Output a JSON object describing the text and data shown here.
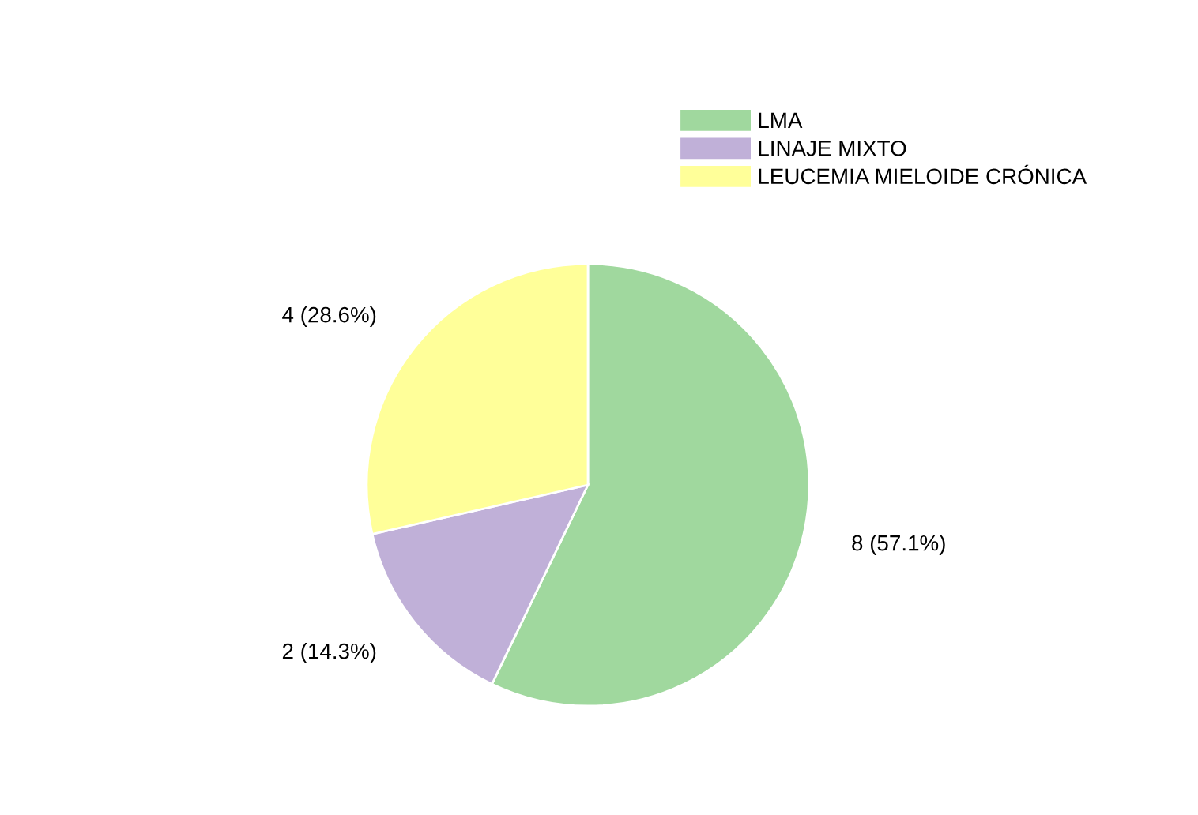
{
  "chart_data": {
    "type": "pie",
    "categories": [
      "LMA",
      "LINAJE MIXTO",
      "LEUCEMIA MIELOIDE CRÓNICA"
    ],
    "values": [
      8,
      2,
      4
    ],
    "colors": [
      "#a0d89e",
      "#c0b0d8",
      "#ffff99"
    ],
    "value_labels": [
      "8 (57.1%)",
      "2 (14.3%)",
      "4 (28.6%)"
    ],
    "legend": "top right"
  }
}
